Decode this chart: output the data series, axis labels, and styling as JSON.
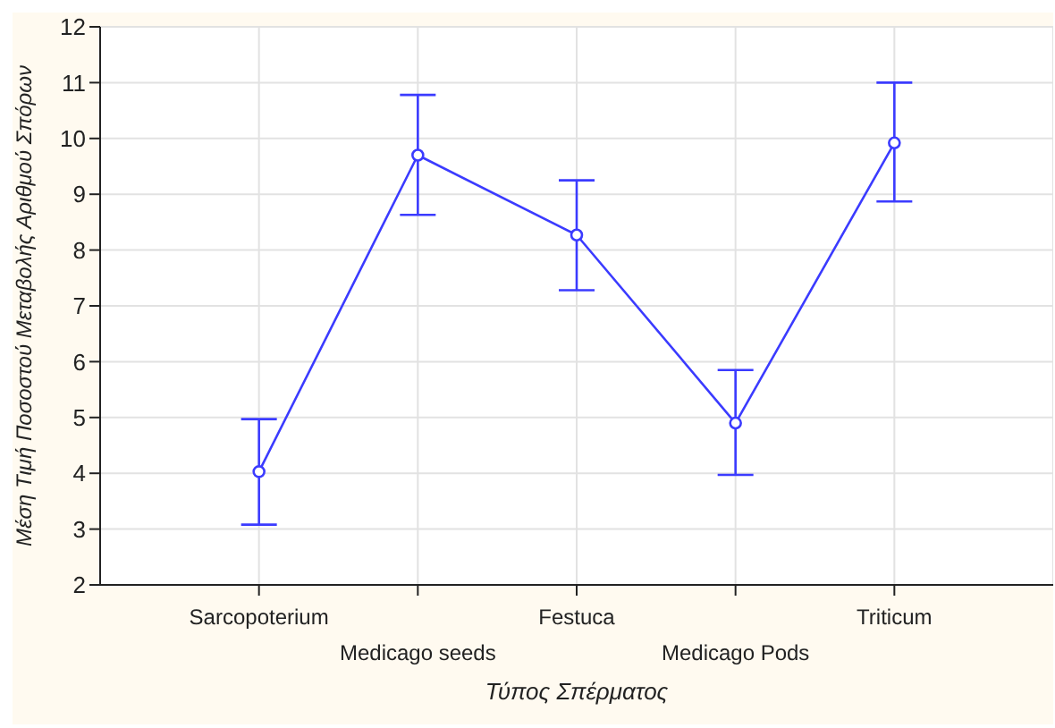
{
  "chart_data": {
    "type": "line",
    "xlabel": "Τύπος Σπέρματος",
    "ylabel": "Μέση Τιμή Ποσοστού Μεταβολής Αριθμού Σπόρων",
    "categories": [
      "Sarcopoterium",
      "Medicago seeds",
      "Festuca",
      "Medicago Pods",
      "Triticum"
    ],
    "series": [
      {
        "color": "#3b3bff",
        "values": [
          4.03,
          9.7,
          8.27,
          4.9,
          9.92
        ],
        "errors": [
          [
            3.08,
            4.97
          ],
          [
            8.63,
            10.78
          ],
          [
            7.28,
            9.25
          ],
          [
            3.97,
            5.85
          ],
          [
            8.87,
            11.0
          ]
        ]
      }
    ],
    "ylim": [
      2,
      12
    ],
    "yticks": [
      2,
      3,
      4,
      5,
      6,
      7,
      8,
      9,
      10,
      11,
      12
    ],
    "grid": true,
    "marker": "circle",
    "line_style": "solid",
    "legend": false
  }
}
